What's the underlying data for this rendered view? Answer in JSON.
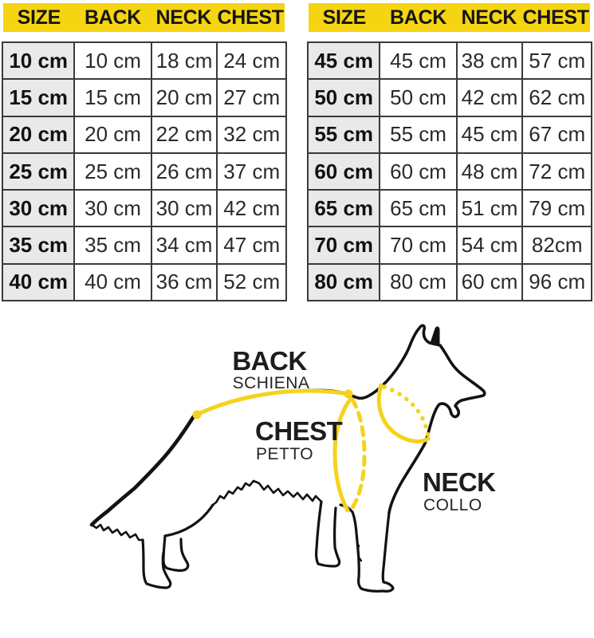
{
  "accent_yellow": "#f5d411",
  "diagram_line_yellow": "#f6d21d",
  "size_column_bg": "#e9e9e9",
  "tables": [
    {
      "name": "small-sizes",
      "headers": [
        "SIZE",
        "BACK",
        "NECK",
        "CHEST"
      ],
      "rows": [
        [
          "10 cm",
          "10 cm",
          "18 cm",
          "24 cm"
        ],
        [
          "15 cm",
          "15 cm",
          "20 cm",
          "27 cm"
        ],
        [
          "20 cm",
          "20 cm",
          "22 cm",
          "32 cm"
        ],
        [
          "25 cm",
          "25 cm",
          "26 cm",
          "37 cm"
        ],
        [
          "30 cm",
          "30 cm",
          "30 cm",
          "42 cm"
        ],
        [
          "35 cm",
          "35 cm",
          "34 cm",
          "47 cm"
        ],
        [
          "40 cm",
          "40 cm",
          "36 cm",
          "52 cm"
        ]
      ]
    },
    {
      "name": "large-sizes",
      "headers": [
        "SIZE",
        "BACK",
        "NECK",
        "CHEST"
      ],
      "rows": [
        [
          "45 cm",
          "45 cm",
          "38 cm",
          "57 cm"
        ],
        [
          "50 cm",
          "50 cm",
          "42 cm",
          "62 cm"
        ],
        [
          "55 cm",
          "55 cm",
          "45 cm",
          "67 cm"
        ],
        [
          "60 cm",
          "60 cm",
          "48 cm",
          "72 cm"
        ],
        [
          "65 cm",
          "65 cm",
          "51 cm",
          "79 cm"
        ],
        [
          "70 cm",
          "70 cm",
          "54 cm",
          "82cm"
        ],
        [
          "80 cm",
          "80 cm",
          "60 cm",
          "96 cm"
        ]
      ]
    }
  ],
  "diagram": {
    "back_label": "BACK",
    "back_sublabel": "SCHIENA",
    "chest_label": "CHEST",
    "chest_sublabel": "PETTO",
    "neck_label": "NECK",
    "neck_sublabel": "COLLO"
  }
}
